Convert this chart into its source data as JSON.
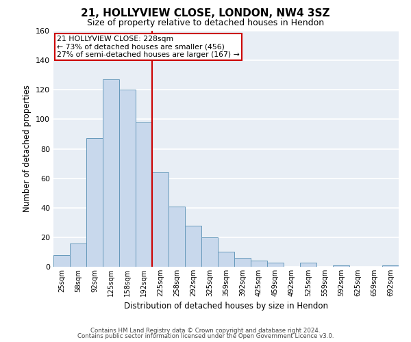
{
  "title": "21, HOLLYVIEW CLOSE, LONDON, NW4 3SZ",
  "subtitle": "Size of property relative to detached houses in Hendon",
  "xlabel": "Distribution of detached houses by size in Hendon",
  "ylabel": "Number of detached properties",
  "bar_labels": [
    "25sqm",
    "58sqm",
    "92sqm",
    "125sqm",
    "158sqm",
    "192sqm",
    "225sqm",
    "258sqm",
    "292sqm",
    "325sqm",
    "359sqm",
    "392sqm",
    "425sqm",
    "459sqm",
    "492sqm",
    "525sqm",
    "559sqm",
    "592sqm",
    "625sqm",
    "659sqm",
    "692sqm"
  ],
  "bar_values": [
    8,
    16,
    87,
    127,
    120,
    98,
    64,
    41,
    28,
    20,
    10,
    6,
    4,
    3,
    0,
    3,
    0,
    1,
    0,
    0,
    1
  ],
  "bar_color": "#c8d8ec",
  "bar_edge_color": "#6699bb",
  "vline_color": "#cc0000",
  "annotation_title": "21 HOLLYVIEW CLOSE: 228sqm",
  "annotation_line1": "← 73% of detached houses are smaller (456)",
  "annotation_line2": "27% of semi-detached houses are larger (167) →",
  "annotation_box_edge": "#cc0000",
  "bg_color": "#e8eef5",
  "grid_color": "#ffffff",
  "ylim": [
    0,
    160
  ],
  "yticks": [
    0,
    20,
    40,
    60,
    80,
    100,
    120,
    140,
    160
  ],
  "footer1": "Contains HM Land Registry data © Crown copyright and database right 2024.",
  "footer2": "Contains public sector information licensed under the Open Government Licence v3.0."
}
